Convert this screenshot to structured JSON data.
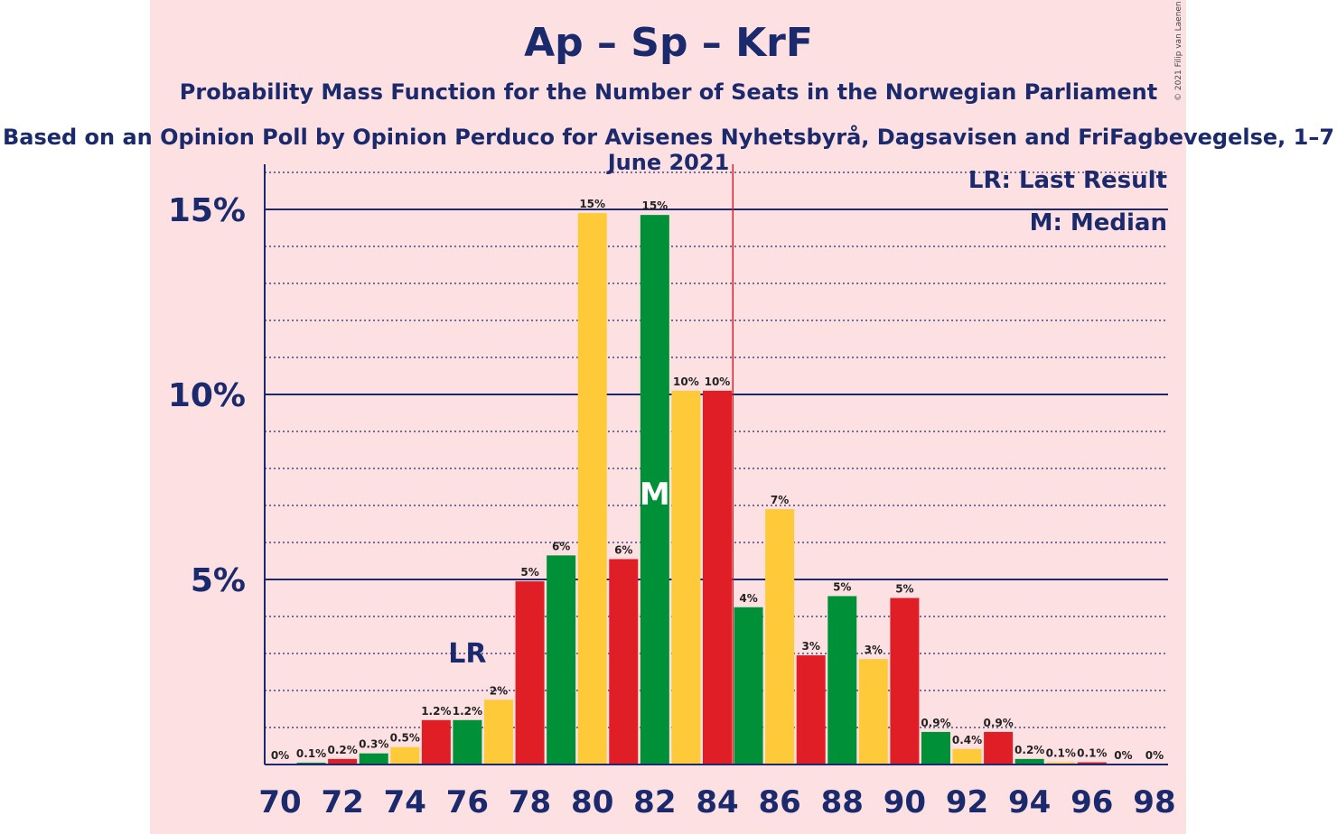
{
  "title": "Ap – Sp – KrF",
  "subtitle": "Probability Mass Function for the Number of Seats in the Norwegian Parliament",
  "source": "Based on an Opinion Poll by Opinion Perduco for Avisenes Nyhetsbyrå, Dagsavisen and FriFagbevegelse, 1–7 June 2021",
  "copyright": "© 2021 Filip van Laenen",
  "legend": {
    "last_result": "LR: Last Result",
    "median": "M: Median"
  },
  "markers": {
    "last_result_label": "LR",
    "median_label": "M",
    "last_result_seat": 76,
    "median_seat": 82,
    "majority_line_seat": 84.5
  },
  "colors": {
    "red": "#e01e26",
    "green": "#009138",
    "yellow": "#ffca3a",
    "axis": "#1a2a6c",
    "majority_line": "#e01e26"
  },
  "chart_data": {
    "type": "bar",
    "xlabel": "",
    "ylabel": "",
    "ylim": [
      0,
      16
    ],
    "y_ticks": [
      {
        "value": 5,
        "label": "5%"
      },
      {
        "value": 10,
        "label": "10%"
      },
      {
        "value": 15,
        "label": "15%"
      }
    ],
    "x_tick_labels": [
      "70",
      "72",
      "74",
      "76",
      "78",
      "80",
      "82",
      "84",
      "86",
      "88",
      "90",
      "92",
      "94",
      "96",
      "98"
    ],
    "bars": [
      {
        "seat": 70,
        "value": 0.0,
        "label": "0%",
        "color": "red"
      },
      {
        "seat": 71,
        "value": 0.05,
        "label": "0.1%",
        "color": "green"
      },
      {
        "seat": 72,
        "value": 0.15,
        "label": "0.2%",
        "color": "red"
      },
      {
        "seat": 73,
        "value": 0.3,
        "label": "0.3%",
        "color": "green"
      },
      {
        "seat": 74,
        "value": 0.47,
        "label": "0.5%",
        "color": "yellow"
      },
      {
        "seat": 75,
        "value": 1.2,
        "label": "1.2%",
        "color": "red"
      },
      {
        "seat": 76,
        "value": 1.2,
        "label": "1.2%",
        "color": "green"
      },
      {
        "seat": 77,
        "value": 1.75,
        "label": "2%",
        "color": "yellow"
      },
      {
        "seat": 78,
        "value": 4.95,
        "label": "5%",
        "color": "red"
      },
      {
        "seat": 79,
        "value": 5.65,
        "label": "6%",
        "color": "green"
      },
      {
        "seat": 80,
        "value": 14.9,
        "label": "15%",
        "color": "yellow"
      },
      {
        "seat": 81,
        "value": 5.55,
        "label": "6%",
        "color": "red"
      },
      {
        "seat": 82,
        "value": 14.85,
        "label": "15%",
        "color": "green"
      },
      {
        "seat": 83,
        "value": 10.1,
        "label": "10%",
        "color": "yellow"
      },
      {
        "seat": 84,
        "value": 10.1,
        "label": "10%",
        "color": "red"
      },
      {
        "seat": 85,
        "value": 4.25,
        "label": "4%",
        "color": "green"
      },
      {
        "seat": 86,
        "value": 6.9,
        "label": "7%",
        "color": "yellow"
      },
      {
        "seat": 87,
        "value": 2.95,
        "label": "3%",
        "color": "red"
      },
      {
        "seat": 88,
        "value": 4.55,
        "label": "5%",
        "color": "green"
      },
      {
        "seat": 89,
        "value": 2.85,
        "label": "3%",
        "color": "yellow"
      },
      {
        "seat": 90,
        "value": 4.5,
        "label": "5%",
        "color": "red"
      },
      {
        "seat": 91,
        "value": 0.88,
        "label": "0.9%",
        "color": "green"
      },
      {
        "seat": 92,
        "value": 0.42,
        "label": "0.4%",
        "color": "yellow"
      },
      {
        "seat": 93,
        "value": 0.88,
        "label": "0.9%",
        "color": "red"
      },
      {
        "seat": 94,
        "value": 0.15,
        "label": "0.2%",
        "color": "green"
      },
      {
        "seat": 95,
        "value": 0.06,
        "label": "0.1%",
        "color": "yellow"
      },
      {
        "seat": 96,
        "value": 0.06,
        "label": "0.1%",
        "color": "red"
      },
      {
        "seat": 97,
        "value": 0.0,
        "label": "0%",
        "color": "green"
      },
      {
        "seat": 98,
        "value": 0.0,
        "label": "0%",
        "color": "yellow"
      }
    ]
  }
}
